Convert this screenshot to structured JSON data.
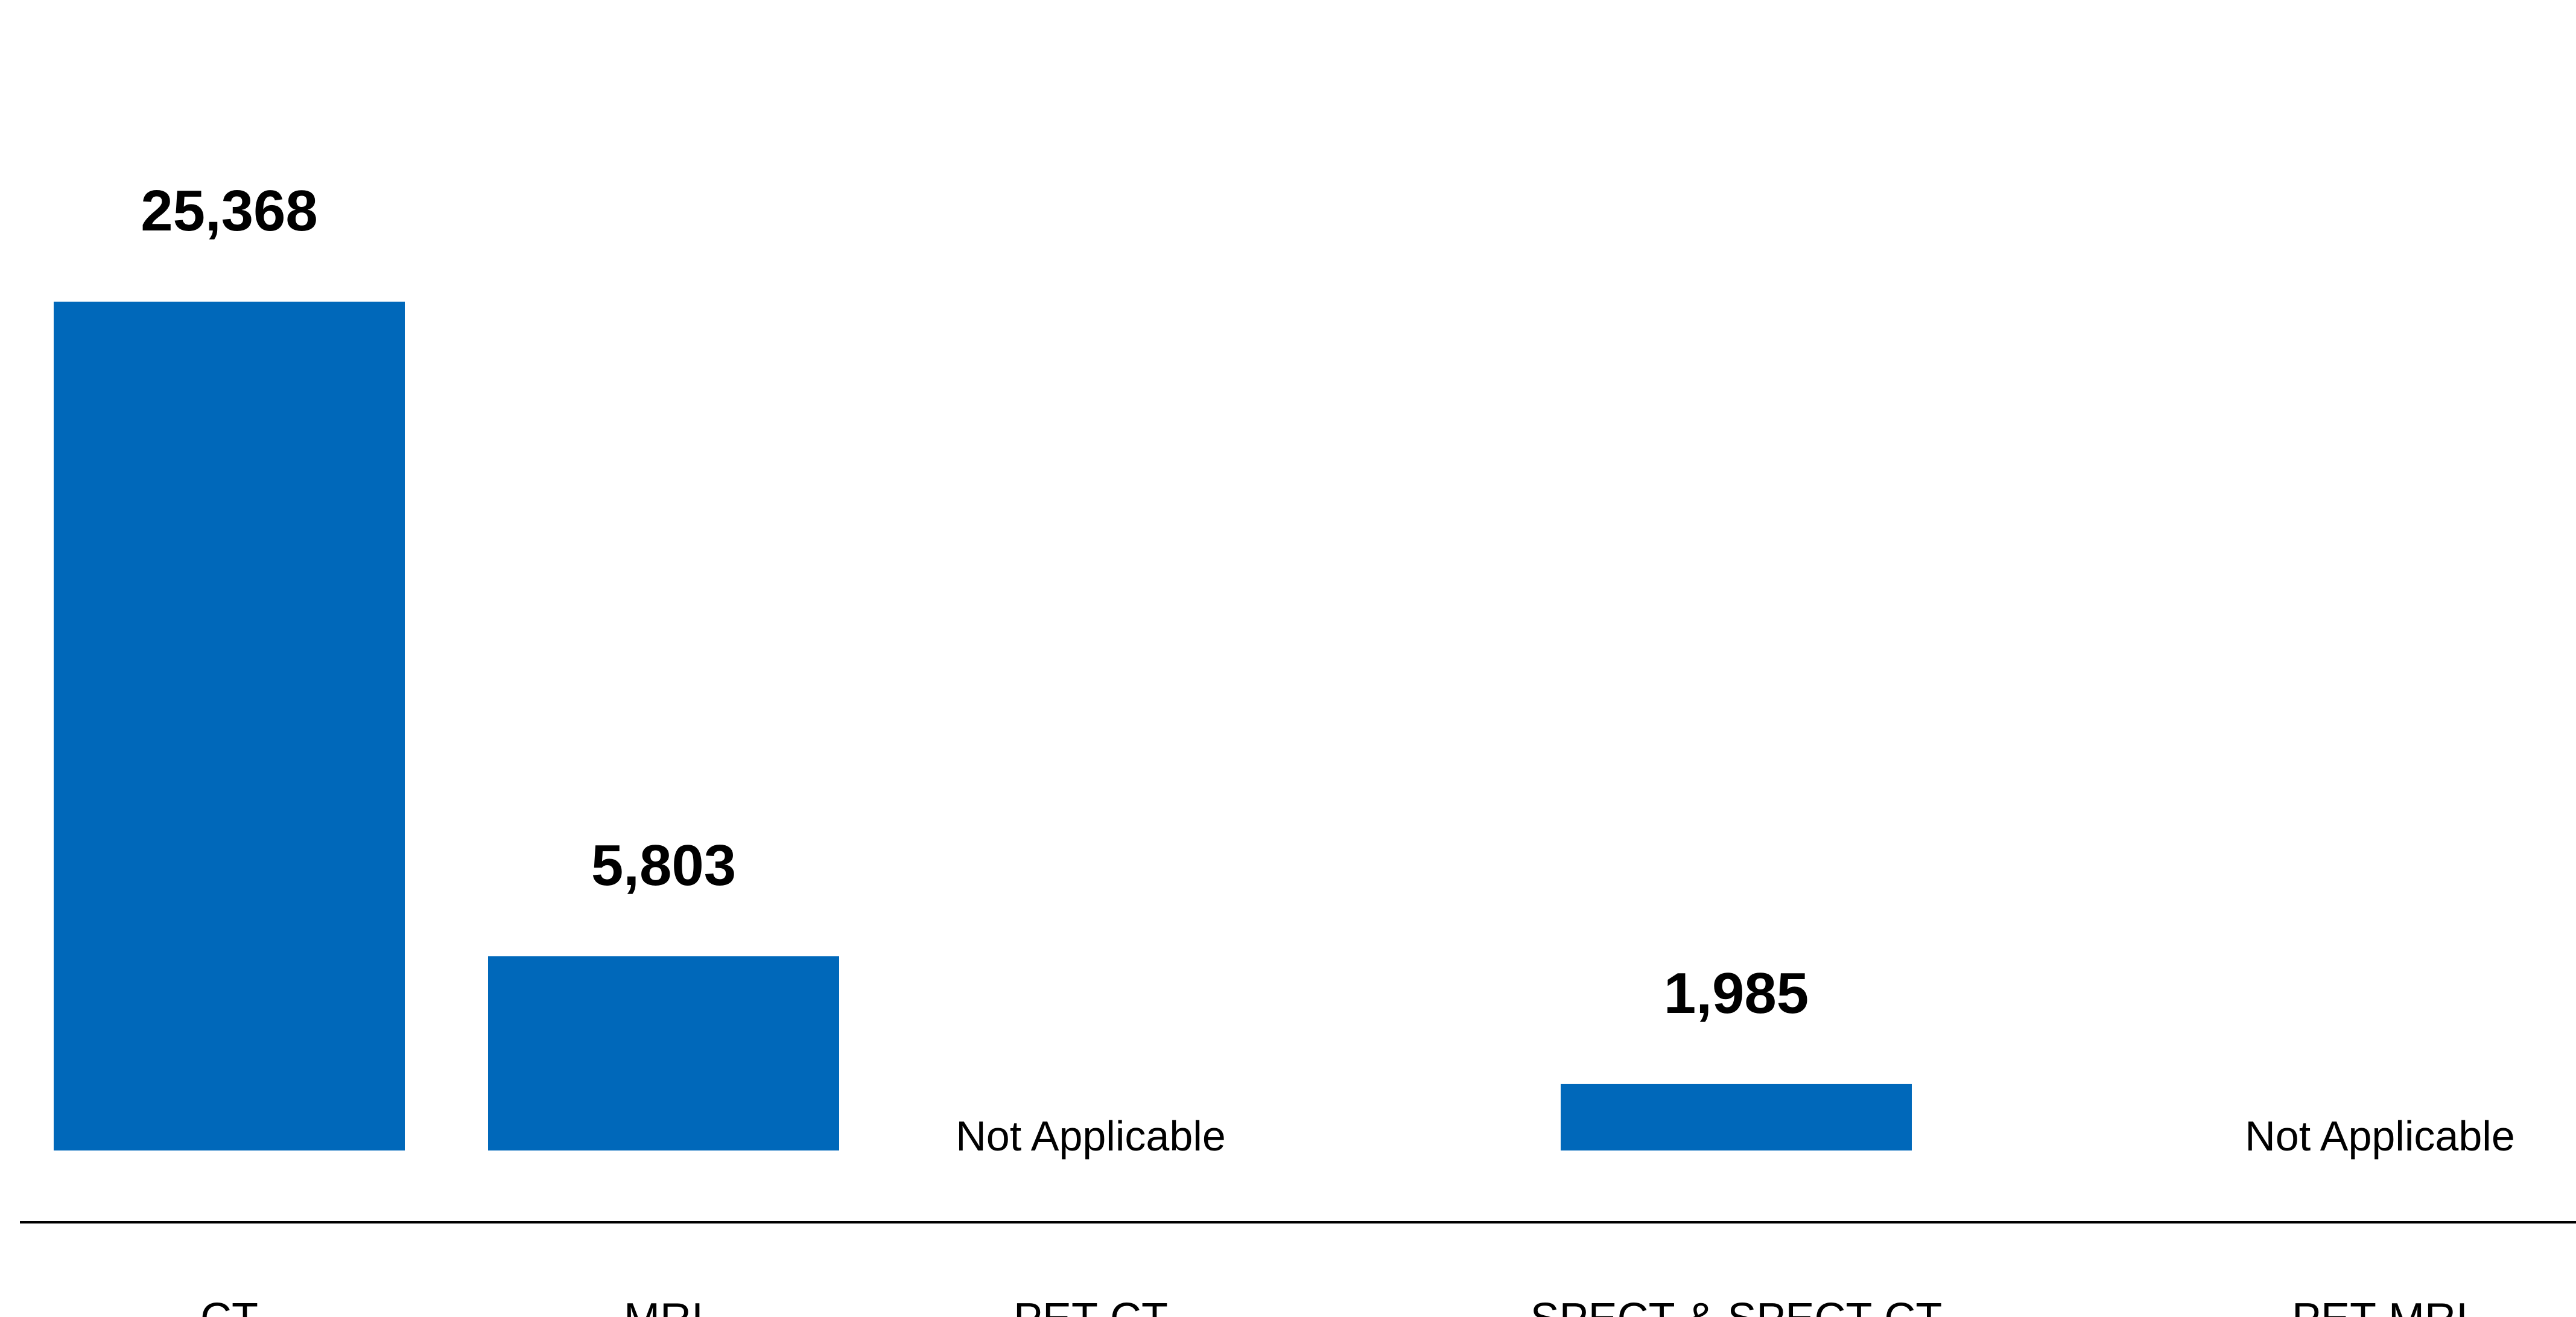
{
  "chart_data": {
    "type": "bar",
    "categories": [
      "CT",
      "MRI",
      "PET-CT",
      "SPECT & SPECT-CT",
      "PET-MRI"
    ],
    "values": [
      25368,
      5803,
      null,
      1985,
      null
    ],
    "value_labels": [
      "25,368",
      "5,803",
      "Not Applicable",
      "1,985",
      "Not Applicable"
    ],
    "bar_color": "#0068BA",
    "grid": false,
    "ylim": [
      0,
      25368
    ]
  }
}
